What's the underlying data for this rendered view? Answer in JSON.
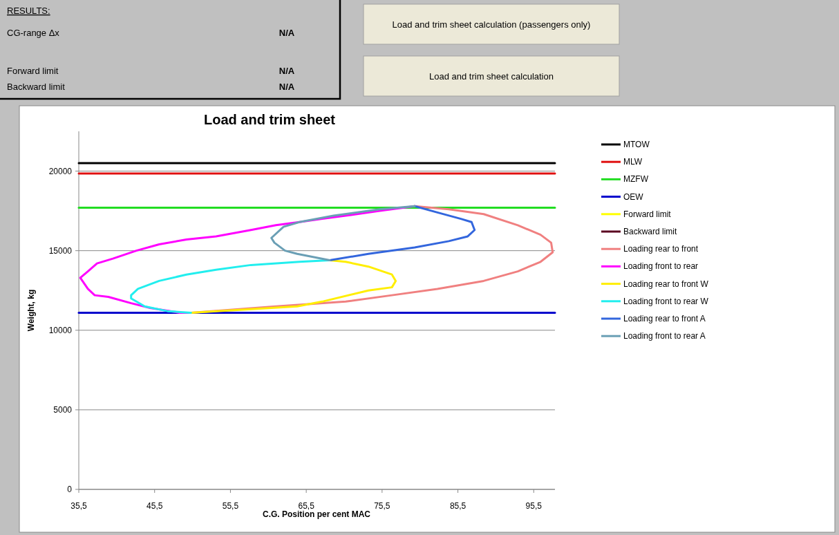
{
  "chart_data": [
    {
      "type": "other",
      "title": "RESULTS:",
      "categories": [
        "CG-range Δx",
        "Forward limit",
        "Backward limit"
      ],
      "value_labels": [
        "N/A",
        "N/A",
        "N/A"
      ],
      "annotations": [
        "Load and trim sheet calculation (passengers only)",
        "Load and trim sheet calculation"
      ]
    },
    {
      "type": "line",
      "title": "Load and trim sheet",
      "xlabel": "C.G. Position per cent MAC",
      "ylabel": "Weight, kg",
      "xlim": [
        35.5,
        98.3
      ],
      "xticks": [
        {
          "value": 35.5,
          "label": "35,5"
        },
        {
          "value": 45.5,
          "label": "45,5"
        },
        {
          "value": 55.5,
          "label": "55,5"
        },
        {
          "value": 65.5,
          "label": "65,5"
        },
        {
          "value": 75.5,
          "label": "75,5"
        },
        {
          "value": 85.5,
          "label": "85,5"
        },
        {
          "value": 95.5,
          "label": "95,5"
        }
      ],
      "ylim": [
        0,
        22500
      ],
      "yticks": [
        0,
        5000,
        10000,
        15000,
        20000
      ],
      "grid": "y",
      "legend": "right",
      "marker": "none",
      "line_style": "solid",
      "series": [
        {
          "name": "MTOW",
          "color": "#000000",
          "x": [
            35.5,
            98.3
          ],
          "values": [
            20500,
            20500
          ]
        },
        {
          "name": "MLW",
          "color": "#e01010",
          "x": [
            35.5,
            98.3
          ],
          "values": [
            19850,
            19850
          ]
        },
        {
          "name": "MZFW",
          "color": "#22dd22",
          "x": [
            35.5,
            98.3
          ],
          "values": [
            17700,
            17700
          ]
        },
        {
          "name": "OEW",
          "color": "#0000cc",
          "x": [
            35.5,
            98.3
          ],
          "values": [
            11100,
            11100
          ]
        },
        {
          "name": "Forward limit",
          "color": "#ffff00"
        },
        {
          "name": "Backward limit",
          "color": "#5a0020"
        },
        {
          "name": "Loading rear to front",
          "color": "#f08080",
          "x": [
            50.3,
            61.5,
            70.7,
            76.8,
            82.8,
            88.9,
            93.4,
            96.4,
            98.0,
            97.8,
            96.4,
            93.4,
            88.9,
            84.3,
            79.8
          ],
          "values": [
            11100,
            11500,
            11800,
            12200,
            12600,
            13100,
            13700,
            14300,
            14900,
            15500,
            16000,
            16600,
            17300,
            17600,
            17800
          ]
        },
        {
          "name": "Loading front to rear",
          "color": "#ff00ff",
          "x": [
            50.3,
            48.8,
            44.9,
            42.4,
            39.4,
            37.6,
            36.7,
            35.7,
            36.7,
            37.9,
            40.0,
            43.1,
            46.1,
            49.7,
            53.6,
            58.2,
            61.5,
            64.6,
            67.6,
            70.7,
            75.2,
            79.8
          ],
          "values": [
            11100,
            11100,
            11400,
            11700,
            12100,
            12200,
            12600,
            13300,
            13700,
            14200,
            14500,
            15000,
            15400,
            15700,
            15900,
            16300,
            16600,
            16800,
            17000,
            17200,
            17500,
            17800
          ]
        },
        {
          "name": "Loading rear to front W",
          "color": "#ffee00",
          "x": [
            50.3,
            64.3,
            67.6,
            73.7,
            76.8,
            77.3,
            76.8,
            73.7,
            70.7,
            68.6
          ],
          "values": [
            11100,
            11500,
            11800,
            12500,
            12700,
            13100,
            13500,
            14000,
            14300,
            14400
          ]
        },
        {
          "name": "Loading front to rear W",
          "color": "#22eeee",
          "x": [
            50.3,
            47.2,
            44.2,
            42.4,
            42.4,
            43.3,
            46.1,
            49.7,
            53.6,
            58.2,
            64.6,
            68.6
          ],
          "values": [
            11100,
            11200,
            11500,
            12000,
            12200,
            12600,
            13100,
            13500,
            13800,
            14100,
            14300,
            14400
          ]
        },
        {
          "name": "Loading rear to front A",
          "color": "#3366dd",
          "x": [
            68.6,
            73.7,
            79.8,
            84.3,
            86.8,
            87.7,
            87.3,
            85.9,
            82.8,
            79.8
          ],
          "values": [
            14400,
            14800,
            15200,
            15600,
            15900,
            16300,
            16800,
            17000,
            17400,
            17800
          ]
        },
        {
          "name": "Loading front to rear A",
          "color": "#6a9fb5",
          "x": [
            68.6,
            64.3,
            62.7,
            61.3,
            60.9,
            62.5,
            64.6,
            69.1,
            75.2,
            79.8
          ],
          "values": [
            14400,
            14800,
            15000,
            15500,
            15800,
            16500,
            16800,
            17200,
            17600,
            17800
          ]
        }
      ]
    }
  ]
}
